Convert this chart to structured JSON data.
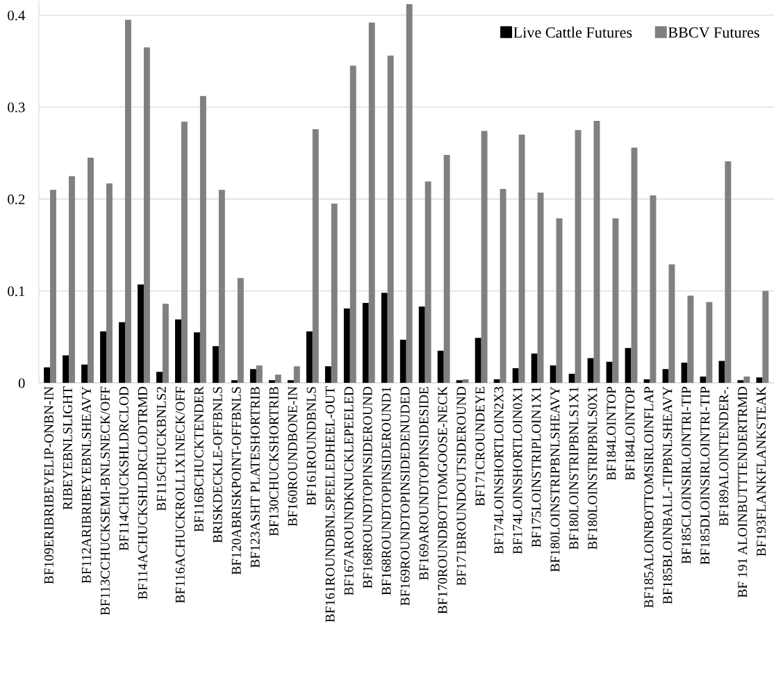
{
  "chart_data": {
    "type": "bar",
    "categories": [
      "BF109ERIBRIBEYELIP-ONBN-IN",
      "RIBEYEBNLSLIGHT",
      "BF112ARIBRIBEYEBNLSHEAVY",
      "BF113CCHUCKSEMI-BNLSNECK/OFF",
      "BF114CHUCKSHLDRCLOD",
      "BF114ACHUCKSHLDRCLODTRMD",
      "BF115CHUCKBNLS2",
      "BF116ACHUCKROLL1X1NECK/OFF",
      "BF116BCHUCKTENDER",
      "BRISKDECKLE-OFFBNLS",
      "BF120ABRISKPOINT-OFFBNLS",
      "BF123ASHT PLATESHORTRIB",
      "BF130CHUCKSHORTRIB",
      "BF160ROUNDBONE-IN",
      "BF161ROUNDBNLS",
      "BF161ROUNDBNLSPEELEDHEEL-OUT",
      "BF167AROUNDKNUCKLEPEELED",
      "BF168ROUNDTOPINSIDEROUND",
      "BF168ROUNDTOPINSIDEROUND1",
      "BF169ROUNDTOPINSIDEDENUDED",
      "BF169AROUNDTOPINSIDESIDE",
      "BF170ROUNDBOTTOMGOOSE-NECK",
      "BF171BROUNDOUTSIDEROUND",
      "BF171CROUNDEYE",
      "BF174LOINSHORTLOIN2X3",
      "BF174LOINSHORTLOIN0X1",
      "BF175LOINSTRIPLOIN1X1",
      "BF180LOINSTRIPBNLSHEAVY",
      "BF180LOINSTRIPBNLS1X1",
      "BF180LOINSTRIPBNLS0X1",
      "BF184LOINTOP",
      "BF184LOINTOP",
      "BF185ALOINBOTTOMSIRLOINFLAP",
      "BF185BLOINBALL-TIPBNLSHEAVY",
      "BF185CLOINSIRLOINTRI-TIP",
      "BF185DLOINSIRLOINTRI-TIP",
      "BF189ALOINTENDER-.",
      "BF 191 ALOINBUTTTENDERTRMD",
      "BF193FLANKFLANKSTEAK"
    ],
    "series": [
      {
        "name": "Live Cattle Futures",
        "color": "#000000",
        "values": [
          0.017,
          0.03,
          0.02,
          0.056,
          0.066,
          0.107,
          0.012,
          0.069,
          0.055,
          0.04,
          0.003,
          0.015,
          0.003,
          0.003,
          0.056,
          0.018,
          0.081,
          0.087,
          0.098,
          0.047,
          0.083,
          0.035,
          0.003,
          0.049,
          0.004,
          0.016,
          0.032,
          0.019,
          0.01,
          0.027,
          0.023,
          0.038,
          0.004,
          0.015,
          0.022,
          0.007,
          0.024,
          0.003,
          0.006
        ]
      },
      {
        "name": "BBCV Futures",
        "color": "#808080",
        "values": [
          0.21,
          0.225,
          0.245,
          0.217,
          0.395,
          0.365,
          0.086,
          0.284,
          0.312,
          0.21,
          0.114,
          0.019,
          0.009,
          0.018,
          0.276,
          0.195,
          0.345,
          0.392,
          0.356,
          0.412,
          0.219,
          0.248,
          0.004,
          0.274,
          0.211,
          0.27,
          0.207,
          0.179,
          0.275,
          0.285,
          0.179,
          0.256,
          0.204,
          0.129,
          0.095,
          0.088,
          0.241,
          0.007,
          0.1
        ]
      }
    ],
    "ylim": [
      0,
      0.415
    ],
    "yticks": [
      {
        "value": 0,
        "label": "0"
      },
      0.1,
      0.2,
      0.3,
      0.4
    ],
    "grid": "y",
    "legend": "top right"
  }
}
